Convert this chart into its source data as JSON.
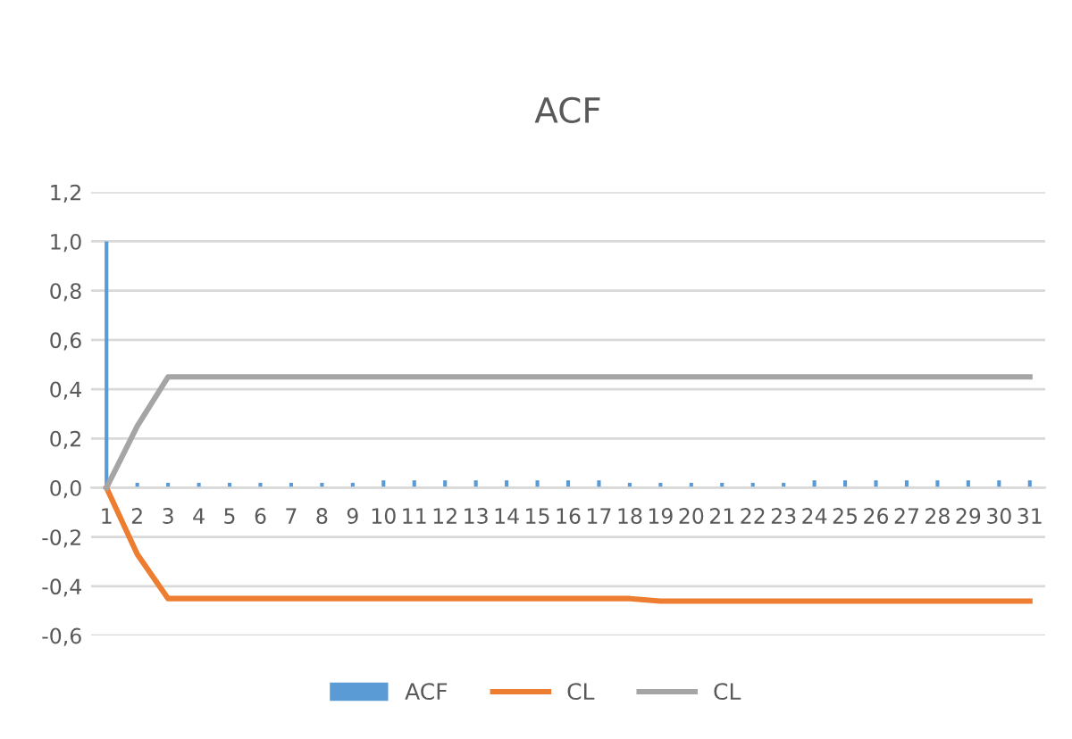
{
  "chart_data": {
    "type": "bar",
    "title": "ACF",
    "categories": [
      "1",
      "2",
      "3",
      "4",
      "5",
      "6",
      "7",
      "8",
      "9",
      "10",
      "11",
      "12",
      "13",
      "14",
      "15",
      "16",
      "17",
      "18",
      "19",
      "20",
      "21",
      "22",
      "23",
      "24",
      "25",
      "26",
      "27",
      "28",
      "29",
      "30",
      "31"
    ],
    "series": [
      {
        "name": "ACF",
        "color": "#5b9bd5",
        "values": [
          1.0,
          0.02,
          0.02,
          0.02,
          0.02,
          0.02,
          0.02,
          0.02,
          0.02,
          0.03,
          0.03,
          0.03,
          0.03,
          0.03,
          0.03,
          0.03,
          0.03,
          0.02,
          0.02,
          0.02,
          0.02,
          0.02,
          0.02,
          0.03,
          0.03,
          0.03,
          0.03,
          0.03,
          0.03,
          0.03,
          0.03
        ]
      },
      {
        "name": "CL",
        "type": "line",
        "color": "#ed7d31",
        "values": [
          0,
          -0.27,
          -0.45,
          -0.45,
          -0.45,
          -0.45,
          -0.45,
          -0.45,
          -0.45,
          -0.45,
          -0.45,
          -0.45,
          -0.45,
          -0.45,
          -0.45,
          -0.45,
          -0.45,
          -0.45,
          -0.46,
          -0.46,
          -0.46,
          -0.46,
          -0.46,
          -0.46,
          -0.46,
          -0.46,
          -0.46,
          -0.46,
          -0.46,
          -0.46,
          -0.46
        ]
      },
      {
        "name": "CL",
        "type": "line",
        "color": "#a5a5a5",
        "values": [
          0,
          0.25,
          0.45,
          0.45,
          0.45,
          0.45,
          0.45,
          0.45,
          0.45,
          0.45,
          0.45,
          0.45,
          0.45,
          0.45,
          0.45,
          0.45,
          0.45,
          0.45,
          0.45,
          0.45,
          0.45,
          0.45,
          0.45,
          0.45,
          0.45,
          0.45,
          0.45,
          0.45,
          0.45,
          0.45,
          0.45
        ]
      }
    ],
    "ylim": [
      -0.6,
      1.2
    ],
    "yticks": [
      {
        "value": -0.6,
        "label": "-0,6"
      },
      {
        "value": -0.4,
        "label": "-0,4"
      },
      {
        "value": -0.2,
        "label": "-0,2"
      },
      {
        "value": 0,
        "label": "0,0"
      },
      {
        "value": 0.2,
        "label": "0,2"
      },
      {
        "value": 0.4,
        "label": "0,4"
      },
      {
        "value": 0.6,
        "label": "0,6"
      },
      {
        "value": 0.8,
        "label": "0,8"
      },
      {
        "value": 1.0,
        "label": "1,0"
      },
      {
        "value": 1.2,
        "label": "1,2"
      }
    ],
    "grid": "y",
    "legend": "bottom"
  }
}
